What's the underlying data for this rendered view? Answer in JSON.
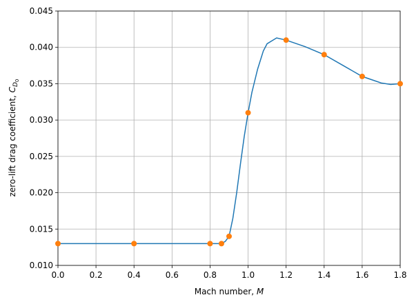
{
  "chart_data": {
    "type": "line-scatter",
    "xlabel": {
      "text": "Mach number, ",
      "symbol": "M"
    },
    "ylabel": {
      "text": "zero-lift drag coefficient, ",
      "symbol": "C",
      "subscript": "D",
      "subsubscript": "0"
    },
    "series": [
      {
        "type": "line",
        "color": "#1f77b4",
        "x": [
          0,
          0.2,
          0.4,
          0.6,
          0.8,
          0.86,
          0.88,
          0.9,
          0.92,
          0.94,
          0.96,
          0.98,
          1.0,
          1.02,
          1.05,
          1.08,
          1.1,
          1.15,
          1.2,
          1.3,
          1.4,
          1.5,
          1.6,
          1.7,
          1.75,
          1.8
        ],
        "values": [
          0.013,
          0.013,
          0.013,
          0.013,
          0.013,
          0.013,
          0.0133,
          0.014,
          0.0165,
          0.02,
          0.024,
          0.0278,
          0.031,
          0.0338,
          0.037,
          0.0395,
          0.0405,
          0.0413,
          0.041,
          0.0401,
          0.039,
          0.0375,
          0.036,
          0.0351,
          0.0349,
          0.035
        ]
      },
      {
        "type": "scatter",
        "color": "#ff7f0e",
        "x": [
          0,
          0.4,
          0.8,
          0.86,
          0.9,
          1.0,
          1.2,
          1.4,
          1.6,
          1.8
        ],
        "values": [
          0.013,
          0.013,
          0.013,
          0.013,
          0.014,
          0.031,
          0.041,
          0.039,
          0.036,
          0.035
        ]
      }
    ],
    "xlim": [
      0,
      1.8
    ],
    "xticks": [
      {
        "value": 0,
        "label": "0.0"
      },
      0.2,
      0.4,
      0.6,
      0.8,
      {
        "value": 1,
        "label": "1.0"
      },
      1.2,
      1.4,
      1.6,
      1.8
    ],
    "ylim": [
      0.01,
      0.045
    ],
    "yticks": [
      {
        "value": 0.01,
        "label": "0.010"
      },
      0.015,
      {
        "value": 0.02,
        "label": "0.020"
      },
      0.025,
      {
        "value": 0.03,
        "label": "0.030"
      },
      0.035,
      {
        "value": 0.04,
        "label": "0.040"
      },
      0.045
    ],
    "grid": true
  }
}
